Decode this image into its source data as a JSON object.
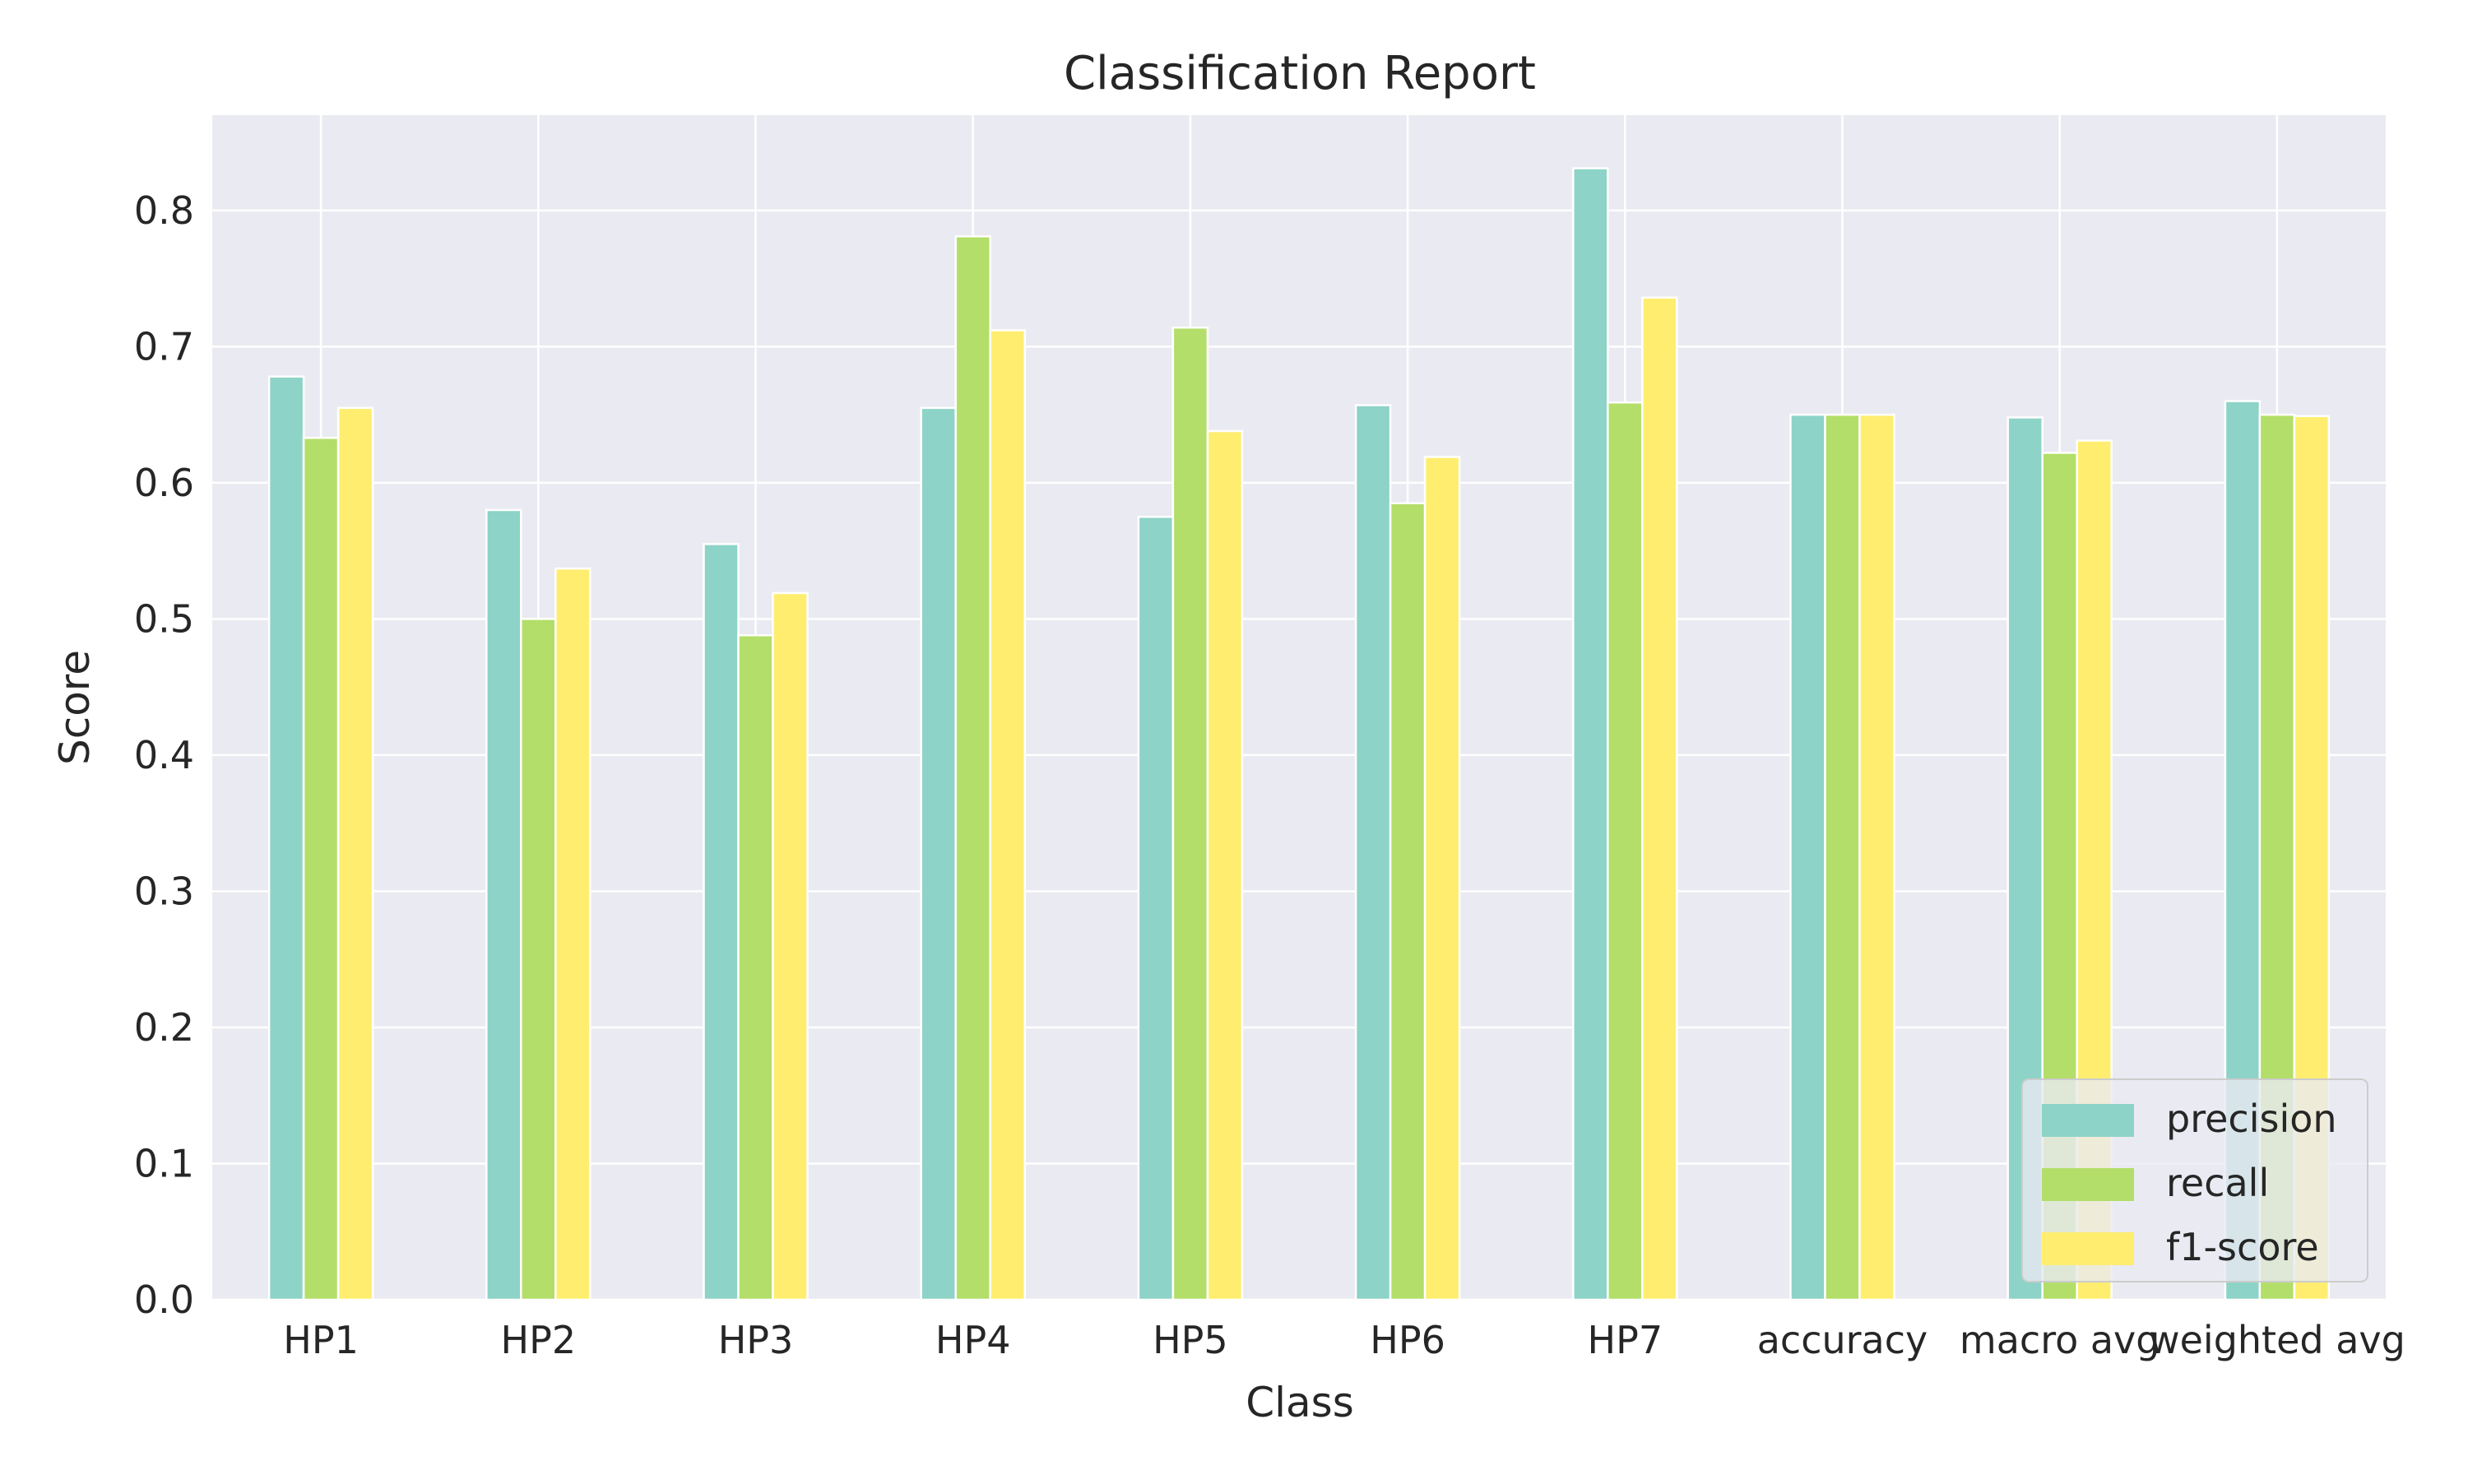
{
  "chart_data": {
    "type": "bar",
    "title": "Classification Report",
    "xlabel": "Class",
    "ylabel": "Score",
    "categories": [
      "HP1",
      "HP2",
      "HP3",
      "HP4",
      "HP5",
      "HP6",
      "HP7",
      "accuracy",
      "macro avg",
      "weighted avg"
    ],
    "series": [
      {
        "name": "precision",
        "color": "#8dd3c7",
        "values": [
          0.678,
          0.58,
          0.555,
          0.655,
          0.575,
          0.657,
          0.831,
          0.65,
          0.648,
          0.66
        ]
      },
      {
        "name": "recall",
        "color": "#b3de69",
        "values": [
          0.633,
          0.5,
          0.488,
          0.781,
          0.714,
          0.585,
          0.659,
          0.65,
          0.622,
          0.65
        ]
      },
      {
        "name": "f1-score",
        "color": "#ffed6f",
        "values": [
          0.655,
          0.537,
          0.519,
          0.712,
          0.638,
          0.619,
          0.736,
          0.65,
          0.631,
          0.649
        ]
      }
    ],
    "ylim": [
      0,
      0.87
    ],
    "yticks": [
      0.0,
      0.1,
      0.2,
      0.3,
      0.4,
      0.5,
      0.6,
      0.7,
      0.8
    ],
    "ytick_labels": [
      "0.0",
      "0.1",
      "0.2",
      "0.3",
      "0.4",
      "0.5",
      "0.6",
      "0.7",
      "0.8"
    ],
    "grid": true,
    "legend_position": "lower-right",
    "background_color": "#eaeaf2",
    "grid_color": "#ffffff"
  }
}
